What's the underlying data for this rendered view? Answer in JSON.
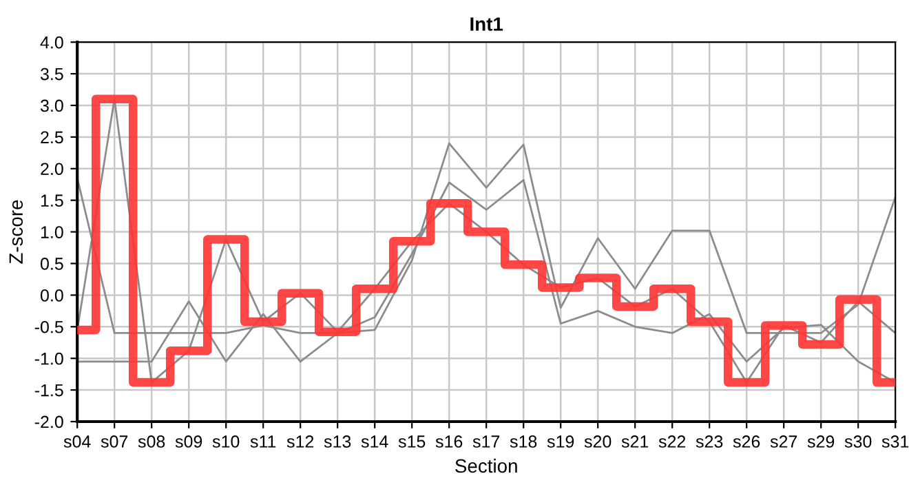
{
  "chart_data": {
    "type": "line",
    "title": "Int1",
    "xlabel": "Section",
    "ylabel": "Z-score",
    "categories": [
      "s04",
      "s07",
      "s08",
      "s09",
      "s10",
      "s11",
      "s12",
      "s13",
      "s14",
      "s15",
      "s16",
      "s17",
      "s18",
      "s19",
      "s20",
      "s21",
      "s22",
      "s23",
      "s26",
      "s27",
      "s29",
      "s30",
      "s31"
    ],
    "series": [
      {
        "color": "#8c8c8c",
        "values": [
          1.85,
          -0.6,
          -0.6,
          -0.6,
          -0.6,
          -0.48,
          -0.6,
          -0.6,
          -0.55,
          0.55,
          2.4,
          1.7,
          2.38,
          -0.2,
          0.9,
          0.1,
          1.02,
          1.02,
          -0.6,
          -0.6,
          -0.6,
          -0.15,
          1.55
        ]
      },
      {
        "color": "#8c8c8c",
        "values": [
          -1.05,
          -1.05,
          -1.05,
          -0.1,
          -1.05,
          -0.3,
          -1.05,
          -0.6,
          -0.35,
          0.65,
          1.78,
          1.35,
          1.82,
          -0.45,
          -0.25,
          -0.5,
          -0.6,
          -0.3,
          -1.05,
          -0.52,
          -0.47,
          -1.05,
          -1.38
        ]
      },
      {
        "color": "#8c8c8c",
        "values": [
          -0.55,
          3.1,
          -1.38,
          -0.88,
          0.88,
          -0.42,
          0.03,
          -0.58,
          0.1,
          0.85,
          1.45,
          1.0,
          0.48,
          0.12,
          0.27,
          -0.18,
          0.1,
          -0.42,
          -1.38,
          -0.48,
          -0.75,
          -0.1,
          -0.6
        ]
      },
      {
        "type": "step",
        "color": "#ff3333",
        "values": [
          -0.55,
          3.1,
          -1.38,
          -0.88,
          0.88,
          -0.42,
          0.03,
          -0.58,
          0.1,
          0.85,
          1.45,
          1.0,
          0.48,
          0.12,
          0.27,
          -0.18,
          0.1,
          -0.42,
          -1.38,
          -0.48,
          -0.78,
          -0.07,
          -1.38
        ]
      }
    ],
    "ylim": [
      -2,
      4
    ],
    "yticks": [
      {
        "value": -2,
        "label": "-2.0"
      },
      {
        "value": -1.5,
        "label": "-1.5"
      },
      {
        "value": -1,
        "label": "-1.0"
      },
      {
        "value": -0.5,
        "label": "-0.5"
      },
      {
        "value": 0,
        "label": "0.0"
      },
      {
        "value": 0.5,
        "label": "0.5"
      },
      {
        "value": 1,
        "label": "1.0"
      },
      {
        "value": 1.5,
        "label": "1.5"
      },
      {
        "value": 2,
        "label": "2.0"
      },
      {
        "value": 2.5,
        "label": "2.5"
      },
      {
        "value": 3,
        "label": "3.0"
      },
      {
        "value": 3.5,
        "label": "3.5"
      },
      {
        "value": 4,
        "label": "4.0"
      }
    ],
    "grid": true,
    "legend": false
  }
}
